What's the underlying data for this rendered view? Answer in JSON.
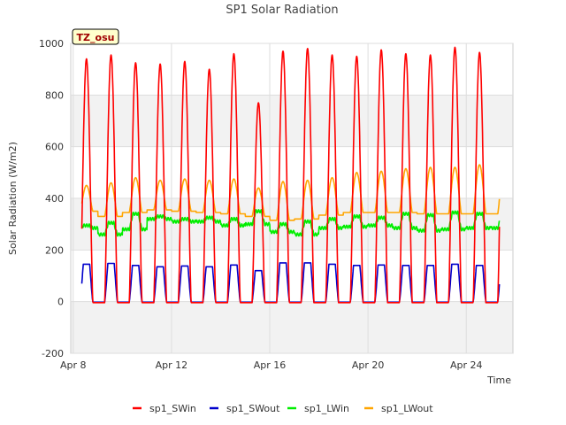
{
  "chart_data": {
    "type": "line",
    "title": "SP1 Solar Radiation",
    "xlabel": "Time",
    "ylabel": "Solar Radiation (W/m2)",
    "badge": "TZ_osu",
    "x_unit": "days",
    "xlim": [
      7.9,
      25.9
    ],
    "ylim": [
      -200,
      1000
    ],
    "y_ticks": [
      -200,
      0,
      200,
      400,
      600,
      800,
      1000
    ],
    "x_ticks": [
      {
        "value": 8,
        "label": "Apr 8"
      },
      {
        "value": 12,
        "label": "Apr 12"
      },
      {
        "value": 16,
        "label": "Apr 16"
      },
      {
        "value": 20,
        "label": "Apr 20"
      },
      {
        "value": 24,
        "label": "Apr 24"
      }
    ],
    "grid": true,
    "legend_position": "bottom",
    "series": [
      {
        "name": "sp1_SWin",
        "color": "#ff0000",
        "daily_peak": [
          940,
          955,
          925,
          920,
          930,
          900,
          960,
          770,
          970,
          980,
          955,
          950,
          975,
          960,
          955,
          985,
          965
        ]
      },
      {
        "name": "sp1_SWout",
        "color": "#0000cc",
        "daily_peak": [
          145,
          148,
          140,
          135,
          138,
          135,
          142,
          120,
          150,
          150,
          145,
          140,
          142,
          140,
          140,
          145,
          140
        ]
      },
      {
        "name": "sp1_LWin",
        "color": "#00ee00",
        "night_level": [
          285,
          260,
          280,
          320,
          310,
          310,
          295,
          300,
          270,
          260,
          285,
          290,
          295,
          285,
          275,
          280,
          285
        ],
        "day_level": [
          295,
          305,
          340,
          330,
          320,
          325,
          320,
          350,
          300,
          310,
          320,
          330,
          325,
          340,
          335,
          345,
          340
        ]
      },
      {
        "name": "sp1_LWout",
        "color": "#ffa500",
        "night_level": [
          350,
          330,
          345,
          355,
          350,
          345,
          340,
          330,
          315,
          320,
          335,
          345,
          345,
          345,
          340,
          340,
          340
        ],
        "daily_peak": [
          450,
          460,
          480,
          470,
          475,
          470,
          475,
          440,
          465,
          470,
          480,
          500,
          505,
          515,
          520,
          520,
          530
        ]
      }
    ]
  }
}
